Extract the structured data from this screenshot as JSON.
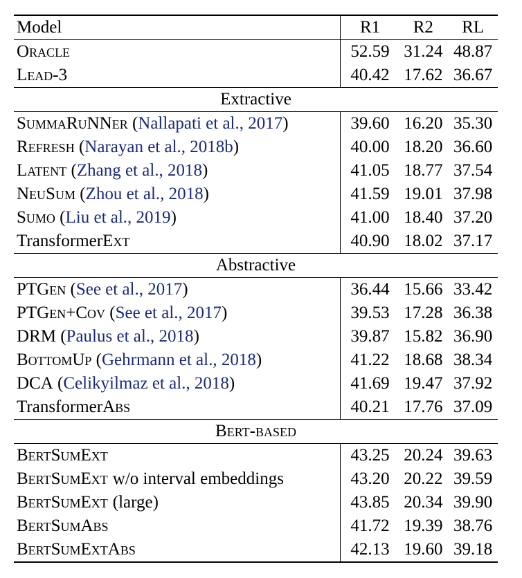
{
  "header": {
    "model": "Model",
    "r1": "R1",
    "r2": "R2",
    "rl": "RL"
  },
  "sections": [
    {
      "title": "",
      "rows": [
        {
          "name": "Oracle",
          "cite": "",
          "tail": "",
          "r1": "52.59",
          "r2": "31.24",
          "rl": "48.87"
        },
        {
          "name": "Lead-3",
          "cite": "",
          "tail": "",
          "r1": "40.42",
          "r2": "17.62",
          "rl": "36.67"
        }
      ]
    },
    {
      "title": "Extractive",
      "rows": [
        {
          "name": "SummaRuNNer",
          "cite": "Nallapati et al., 2017",
          "tail": "",
          "r1": "39.60",
          "r2": "16.20",
          "rl": "35.30"
        },
        {
          "name": "Refresh",
          "cite": "Narayan et al., 2018b",
          "tail": "",
          "r1": "40.00",
          "r2": "18.20",
          "rl": "36.60"
        },
        {
          "name": "Latent",
          "cite": "Zhang et al., 2018",
          "tail": "",
          "r1": "41.05",
          "r2": "18.77",
          "rl": "37.54"
        },
        {
          "name": "NeuSum",
          "cite": "Zhou et al., 2018",
          "tail": "",
          "r1": "41.59",
          "r2": "19.01",
          "rl": "37.98"
        },
        {
          "name": "Sumo",
          "cite": "Liu et al., 2019",
          "tail": "",
          "r1": "41.00",
          "r2": "18.40",
          "rl": "37.20"
        },
        {
          "name": "TransformerExt",
          "cite": "",
          "tail": "",
          "r1": "40.90",
          "r2": "18.02",
          "rl": "37.17"
        }
      ]
    },
    {
      "title": "Abstractive",
      "rows": [
        {
          "name": "PTGen",
          "cite": "See et al., 2017",
          "tail": "",
          "r1": "36.44",
          "r2": "15.66",
          "rl": "33.42"
        },
        {
          "name": "PTGen+Cov",
          "cite": "See et al., 2017",
          "tail": "",
          "r1": "39.53",
          "r2": "17.28",
          "rl": "36.38"
        },
        {
          "name": "DRM",
          "cite": "Paulus et al., 2018",
          "tail": "",
          "r1": "39.87",
          "r2": "15.82",
          "rl": "36.90"
        },
        {
          "name": "BottomUp",
          "cite": "Gehrmann et al., 2018",
          "tail": "",
          "r1": "41.22",
          "r2": "18.68",
          "rl": "38.34"
        },
        {
          "name": "DCA",
          "cite": "Celikyilmaz et al., 2018",
          "tail": "",
          "r1": "41.69",
          "r2": "19.47",
          "rl": "37.92"
        },
        {
          "name": "TransformerAbs",
          "cite": "",
          "tail": "",
          "r1": "40.21",
          "r2": "17.76",
          "rl": "37.09"
        }
      ]
    },
    {
      "title": "Bert-based",
      "rows": [
        {
          "name": "BertSumExt",
          "cite": "",
          "tail": "",
          "r1": "43.25",
          "r2": "20.24",
          "rl": "39.63"
        },
        {
          "name": "BertSumExt",
          "cite": "",
          "tail": "w/o interval embeddings",
          "r1": "43.20",
          "r2": "20.22",
          "rl": "39.59"
        },
        {
          "name": "BertSumExt",
          "cite": "",
          "tail": "(large)",
          "r1": "43.85",
          "r2": "20.34",
          "rl": "39.90"
        },
        {
          "name": "BertSumAbs",
          "cite": "",
          "tail": "",
          "r1": "41.72",
          "r2": "19.39",
          "rl": "38.76"
        },
        {
          "name": "BertSumExtAbs",
          "cite": "",
          "tail": "",
          "r1": "42.13",
          "r2": "19.60",
          "rl": "39.18"
        }
      ]
    }
  ]
}
